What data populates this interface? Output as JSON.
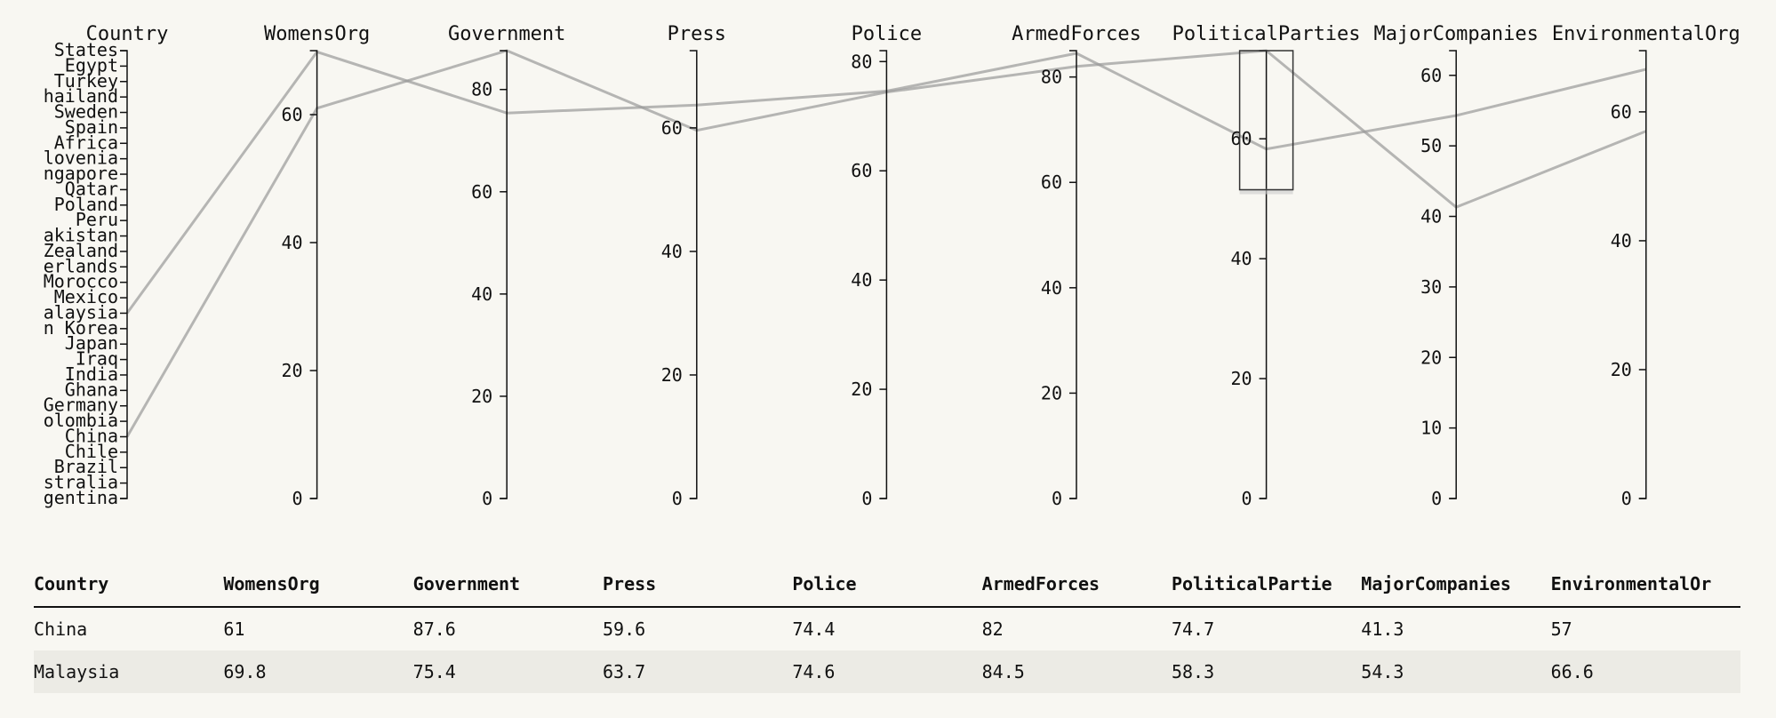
{
  "chart_data": {
    "type": "parallel-coordinates",
    "dimensions": [
      {
        "name": "Country",
        "type": "categorical",
        "categories": [
          "States",
          "Egypt",
          "Turkey",
          "hailand",
          "Sweden",
          "Spain",
          "Africa",
          "lovenia",
          "ngapore",
          "Qatar",
          "Poland",
          "Peru",
          "akistan",
          "Zealand",
          "erlands",
          "Morocco",
          "Mexico",
          "alaysia",
          "n Korea",
          "Japan",
          "Iraq",
          "India",
          "Ghana",
          "Germany",
          "olombia",
          "China",
          "Chile",
          "Brazil",
          "stralia",
          "gentina"
        ]
      },
      {
        "name": "WomensOrg",
        "domain": [
          0,
          70
        ],
        "ticks": [
          0,
          20,
          40,
          60
        ]
      },
      {
        "name": "Government",
        "domain": [
          0,
          87.6
        ],
        "ticks": [
          0,
          20,
          40,
          60,
          80
        ]
      },
      {
        "name": "Press",
        "domain": [
          0,
          72.5
        ],
        "ticks": [
          0,
          20,
          40,
          60
        ]
      },
      {
        "name": "Police",
        "domain": [
          0,
          82
        ],
        "ticks": [
          0,
          20,
          40,
          60,
          80
        ]
      },
      {
        "name": "ArmedForces",
        "domain": [
          0,
          85
        ],
        "ticks": [
          0,
          20,
          40,
          60,
          80
        ]
      },
      {
        "name": "PoliticalParties",
        "domain": [
          0,
          74.7
        ],
        "ticks": [
          0,
          20,
          40,
          60
        ]
      },
      {
        "name": "MajorCompanies",
        "domain": [
          0,
          63.5
        ],
        "ticks": [
          0,
          10,
          20,
          30,
          40,
          50,
          60
        ]
      },
      {
        "name": "EnvironmentalOrg",
        "domain": [
          0,
          69.5
        ],
        "ticks": [
          0,
          20,
          40,
          60
        ]
      }
    ],
    "series": [
      {
        "name": "China",
        "values": {
          "Country": "China",
          "WomensOrg": 61,
          "Government": 87.6,
          "Press": 59.6,
          "Police": 74.4,
          "ArmedForces": 82,
          "PoliticalParties": 74.7,
          "MajorCompanies": 41.3,
          "EnvironmentalOrg": 57
        }
      },
      {
        "name": "Malaysia",
        "values": {
          "Country": "Malaysia",
          "WomensOrg": 69.8,
          "Government": 75.4,
          "Press": 63.7,
          "Police": 74.6,
          "ArmedForces": 84.5,
          "PoliticalParties": 58.3,
          "MajorCompanies": 54.3,
          "EnvironmentalOrg": 66.6
        }
      }
    ],
    "brush": {
      "dimension": "PoliticalParties",
      "range": [
        51.5,
        74.7
      ]
    }
  },
  "table": {
    "headers": [
      "Country",
      "WomensOrg",
      "Government",
      "Press",
      "Police",
      "ArmedForces",
      "PoliticalPartie",
      "MajorCompanies",
      "EnvironmentalOr"
    ],
    "rows": [
      [
        "China",
        "61",
        "87.6",
        "59.6",
        "74.4",
        "82",
        "74.7",
        "41.3",
        "57"
      ],
      [
        "Malaysia",
        "69.8",
        "75.4",
        "63.7",
        "74.6",
        "84.5",
        "58.3",
        "54.3",
        "66.6"
      ]
    ]
  }
}
